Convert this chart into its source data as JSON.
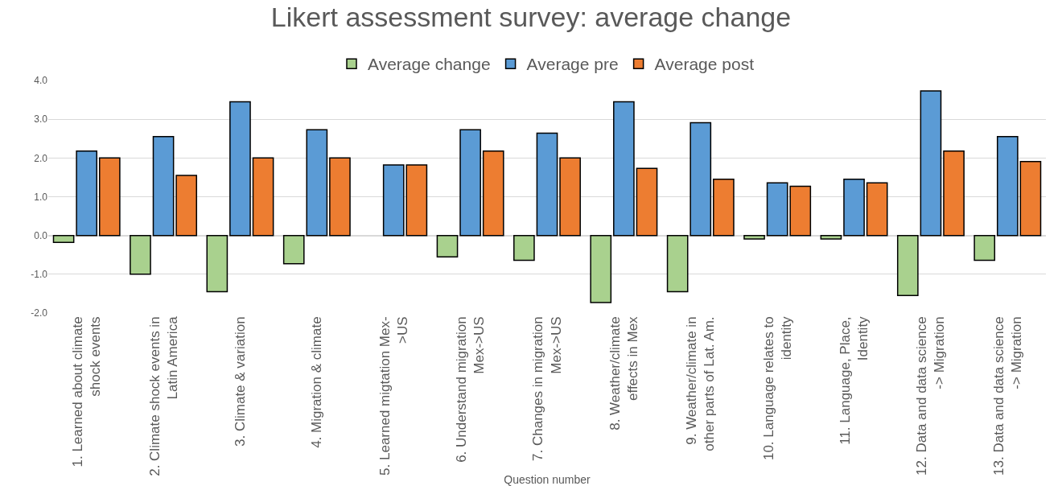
{
  "chart_data": {
    "type": "bar",
    "title": "Likert assessment survey: average change",
    "xlabel": "Question number",
    "categories": [
      "1. Learned about climate\nshock events",
      "2. Climate shock events in\nLatin America",
      "3. Climate & variation",
      "4. Migration & climate",
      "5. Learned migtation Mex-\n>US",
      "6. Understand migration\nMex->US",
      "7. Changes in migration\nMex->US",
      "8. Weather/climate\neffects in Mex",
      "9. Weather/climate in\nother parts of Lat. Am.",
      "10. Language relates to\nidentity",
      "11. Language, Place,\nIdentity",
      "12. Data and data science\n-> Migration",
      "13. Data and data science\n-> Migration"
    ],
    "series": [
      {
        "name": "Average change",
        "color": "#a9d18e",
        "values": [
          -0.18,
          -1.0,
          -1.45,
          -0.73,
          0,
          -0.55,
          -0.64,
          -1.73,
          -1.45,
          -0.09,
          -0.09,
          -1.55,
          -0.64
        ]
      },
      {
        "name": "Average pre",
        "color": "#5b9bd5",
        "values": [
          2.18,
          2.55,
          3.45,
          2.73,
          1.82,
          2.73,
          2.64,
          3.45,
          2.91,
          1.36,
          1.45,
          3.73,
          2.55
        ]
      },
      {
        "name": "Average post",
        "color": "#ed7d31",
        "values": [
          2.0,
          1.55,
          2.0,
          2.0,
          1.82,
          2.18,
          2.0,
          1.73,
          1.45,
          1.27,
          1.36,
          2.18,
          1.91
        ]
      }
    ],
    "ylim": [
      -2.0,
      4.0
    ],
    "yticks": [
      {
        "value": -2,
        "label": "-2.0"
      },
      {
        "value": -1,
        "label": "-1.0"
      },
      {
        "value": 0,
        "label": "0.0"
      },
      {
        "value": 1,
        "label": "1.0"
      },
      {
        "value": 2,
        "label": "2.0"
      },
      {
        "value": 3,
        "label": "3.0"
      },
      {
        "value": 4,
        "label": "4.0"
      }
    ],
    "grid": "y",
    "legend": "top"
  }
}
